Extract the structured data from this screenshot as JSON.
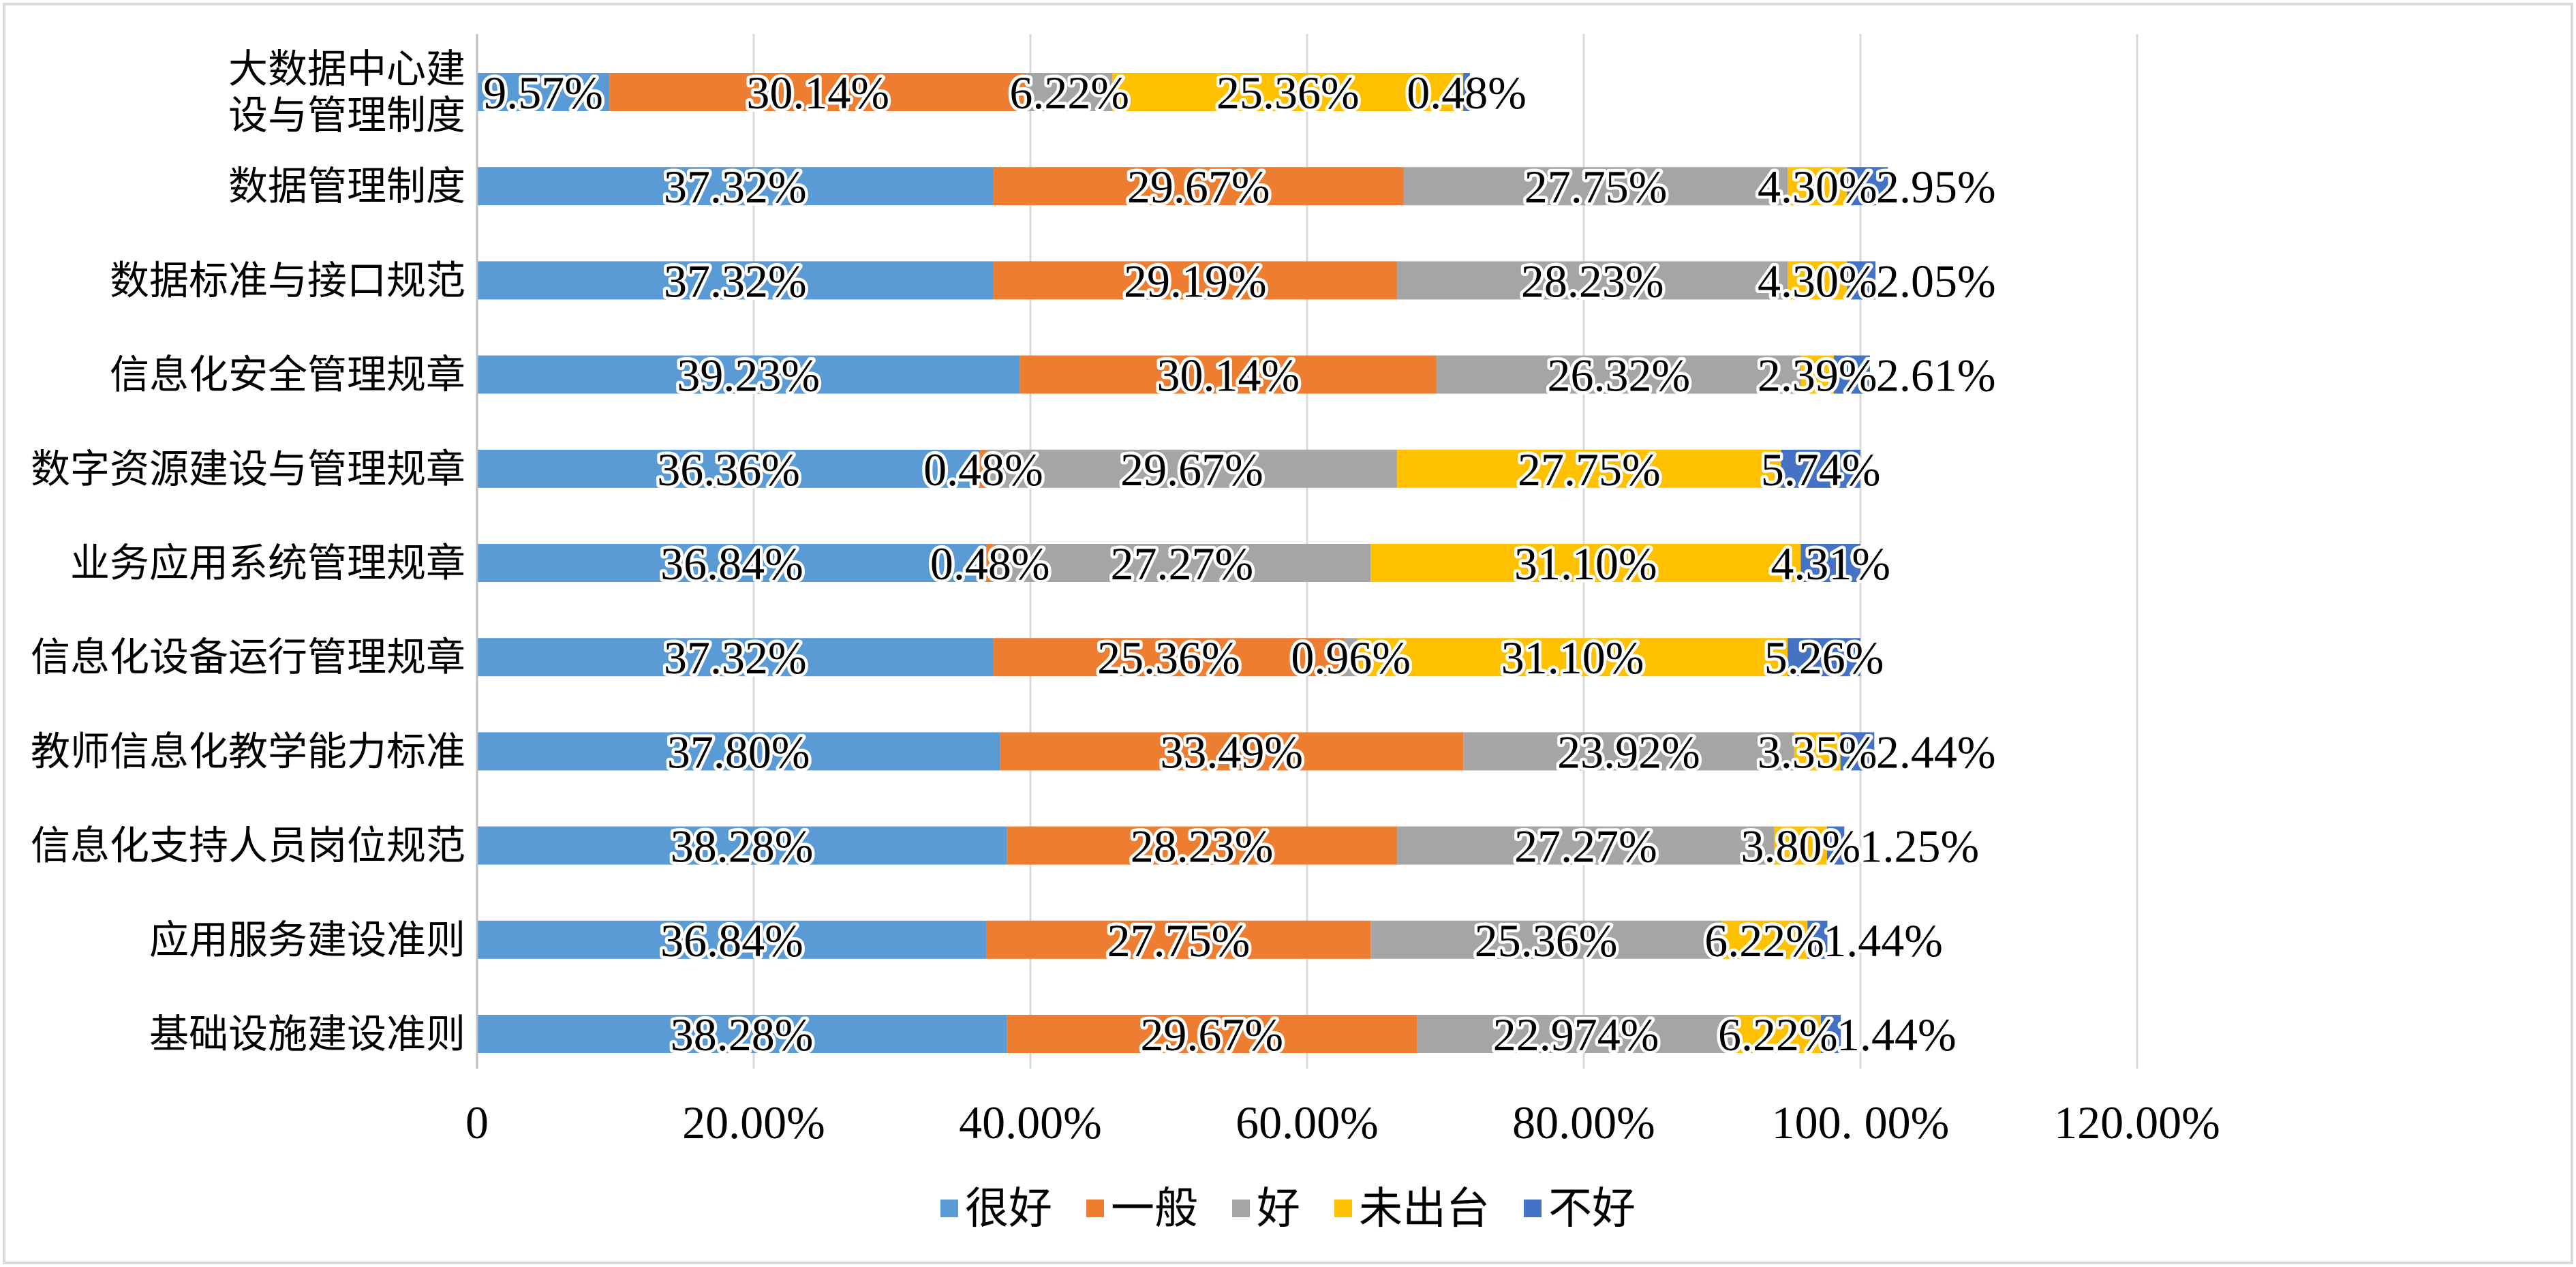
{
  "chart_data": {
    "type": "bar",
    "orientation": "horizontal",
    "stacked": true,
    "title": "",
    "xlabel": "",
    "ylabel": "",
    "xlim": [
      0,
      120
    ],
    "x_ticks": [
      "0",
      "20.00%",
      "40.00%",
      "60.00%",
      "80.00%",
      "100. 00%",
      "120.00%"
    ],
    "grid": "vertical",
    "legend_position": "bottom",
    "categories": [
      [
        "大数据中心建",
        "设与管理制度"
      ],
      "数据管理制度",
      "数据标准与接口规范",
      "信息化安全管理规章",
      "数字资源建设与管理规章",
      "业务应用系统管理规章",
      "信息化设备运行管理规章",
      "教师信息化教学能力标准",
      "信息化支持人员岗位规范",
      "应用服务建设准则",
      "基础设施建设准则"
    ],
    "series": [
      {
        "name": "很好",
        "color": "#5B9BD5",
        "values": [
          9.57,
          37.32,
          37.32,
          39.23,
          36.36,
          36.84,
          37.32,
          37.8,
          38.28,
          36.84,
          38.28
        ],
        "labels": [
          "9.57%",
          "37.32%",
          "37.32%",
          "39.23%",
          "36.36%",
          "36.84%",
          "37.32%",
          "37.80%",
          "38.28%",
          "36.84%",
          "38.28%"
        ]
      },
      {
        "name": "一般",
        "color": "#ED7D31",
        "values": [
          30.14,
          29.67,
          29.19,
          30.14,
          0.48,
          0.48,
          25.36,
          33.49,
          28.23,
          27.75,
          29.67
        ],
        "labels": [
          "30.14%",
          "29.67%",
          "29.19%",
          "30.14%",
          "0.48%",
          "0.48%",
          "25.36%",
          "33.49%",
          "28.23%",
          "27.75%",
          "29.67%"
        ]
      },
      {
        "name": "好",
        "color": "#A5A5A5",
        "values": [
          6.22,
          27.75,
          28.23,
          26.32,
          29.67,
          27.27,
          0.96,
          23.92,
          27.27,
          25.36,
          22.97
        ],
        "labels": [
          "6.22%",
          "27.75%",
          "28.23%",
          "26.32%",
          "29.67%",
          "27.27%",
          "0.96%",
          "23.92%",
          "27.27%",
          "25.36%",
          "22.974%"
        ]
      },
      {
        "name": "未出台",
        "color": "#FFC000",
        "values": [
          25.36,
          4.3,
          4.3,
          2.39,
          27.75,
          31.1,
          31.1,
          3.35,
          3.8,
          6.22,
          6.22
        ],
        "labels": [
          "25.36%",
          "4.30%",
          "4.30%",
          "2.39%",
          "27.75%",
          "31.10%",
          "31.10%",
          "3.35%",
          "3.80%",
          "6.22%",
          "6.22%"
        ]
      },
      {
        "name": "不好",
        "color": "#4472C4",
        "values": [
          0.48,
          2.95,
          2.05,
          2.61,
          5.74,
          4.31,
          5.26,
          2.44,
          1.25,
          1.44,
          1.44
        ],
        "labels": [
          "0.48%",
          "2.95%",
          "2.05%",
          "2.61%",
          "5.74%",
          "4.31%",
          "5.26%",
          "2.44%",
          "1.25%",
          "1.44%",
          "1.44%"
        ]
      }
    ]
  }
}
